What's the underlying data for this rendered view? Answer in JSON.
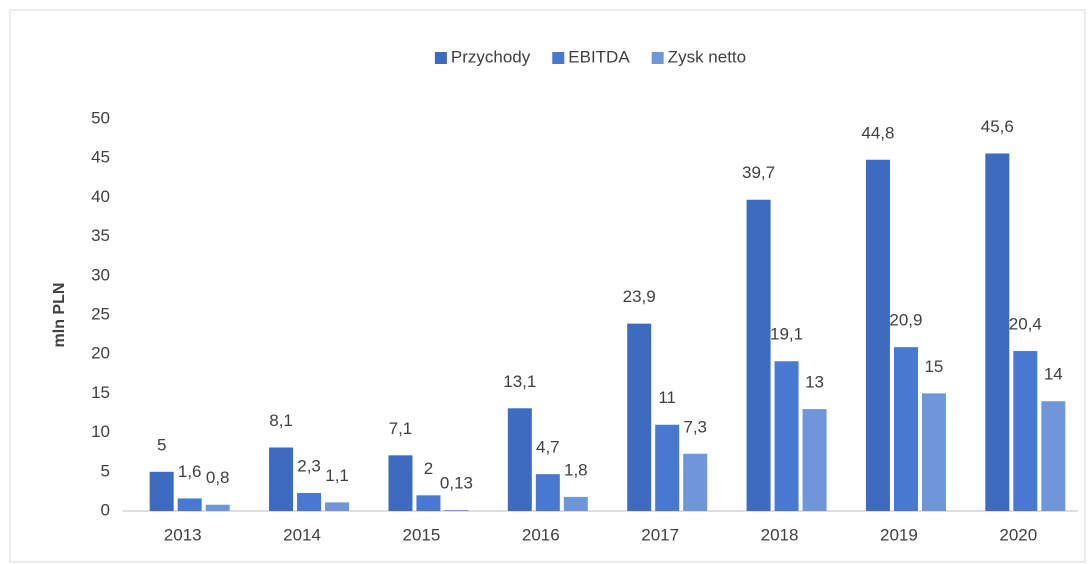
{
  "chart_data": {
    "type": "bar",
    "y_axis_label": "mln PLN",
    "categories": [
      "2013",
      "2014",
      "2015",
      "2016",
      "2017",
      "2018",
      "2019",
      "2020"
    ],
    "series": [
      {
        "name": "Przychody",
        "color": "#3d6bc2",
        "values": [
          5,
          8.1,
          7.1,
          13.1,
          23.9,
          39.7,
          44.8,
          45.6
        ],
        "value_labels": [
          "5",
          "8,1",
          "7,1",
          "13,1",
          "23,9",
          "39,7",
          "44,8",
          "45,6"
        ]
      },
      {
        "name": "EBITDA",
        "color": "#4878d0",
        "values": [
          1.6,
          2.3,
          2,
          4.7,
          11,
          19.1,
          20.9,
          20.4
        ],
        "value_labels": [
          "1,6",
          "2,3",
          "2",
          "4,7",
          "11",
          "19,1",
          "20,9",
          "20,4"
        ]
      },
      {
        "name": "Zysk netto",
        "color": "#6f95da",
        "values": [
          0.8,
          1.1,
          0.13,
          1.8,
          7.3,
          13,
          15,
          14
        ],
        "value_labels": [
          "0,8",
          "1,1",
          "0,13",
          "1,8",
          "7,3",
          "13",
          "15",
          "14"
        ]
      }
    ],
    "ylim": [
      0,
      50
    ],
    "yticks": [
      0,
      5,
      10,
      15,
      20,
      25,
      30,
      35,
      40,
      45,
      50
    ],
    "grid": false,
    "legend": "top"
  }
}
